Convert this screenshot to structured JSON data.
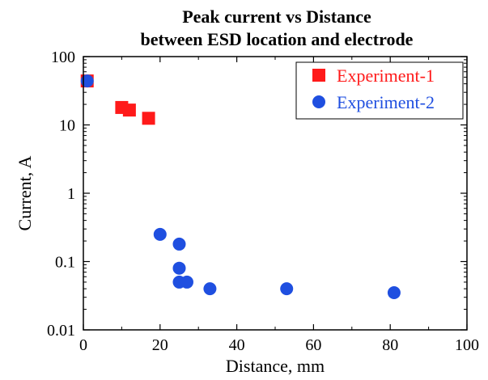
{
  "chart_data": {
    "type": "scatter",
    "title": "Peak current vs Distance",
    "subtitle": "between ESD location and electrode",
    "xlabel": "Distance,  mm",
    "ylabel": "Current,  A",
    "xlim": [
      0,
      100
    ],
    "ylim": [
      0.01,
      100
    ],
    "yscale": "log",
    "x_ticks": [
      "0",
      "20",
      "40",
      "60",
      "80",
      "100"
    ],
    "y_ticks": [
      "0.01",
      "0.1",
      "1",
      "10",
      "100"
    ],
    "grid": false,
    "legend_position": "top-right",
    "series": [
      {
        "name": "Experiment-1",
        "marker": "square",
        "color": "#ff1a1a",
        "points": [
          {
            "x": 1,
            "y": 44
          },
          {
            "x": 10,
            "y": 18
          },
          {
            "x": 12,
            "y": 16.5
          },
          {
            "x": 17,
            "y": 12.5
          }
        ]
      },
      {
        "name": "Experiment-2",
        "marker": "circle",
        "color": "#1f4fe0",
        "points": [
          {
            "x": 1,
            "y": 44
          },
          {
            "x": 20,
            "y": 0.25
          },
          {
            "x": 25,
            "y": 0.18
          },
          {
            "x": 25,
            "y": 0.08
          },
          {
            "x": 25,
            "y": 0.05
          },
          {
            "x": 27,
            "y": 0.05
          },
          {
            "x": 33,
            "y": 0.04
          },
          {
            "x": 53,
            "y": 0.04
          },
          {
            "x": 81,
            "y": 0.035
          }
        ]
      }
    ]
  }
}
